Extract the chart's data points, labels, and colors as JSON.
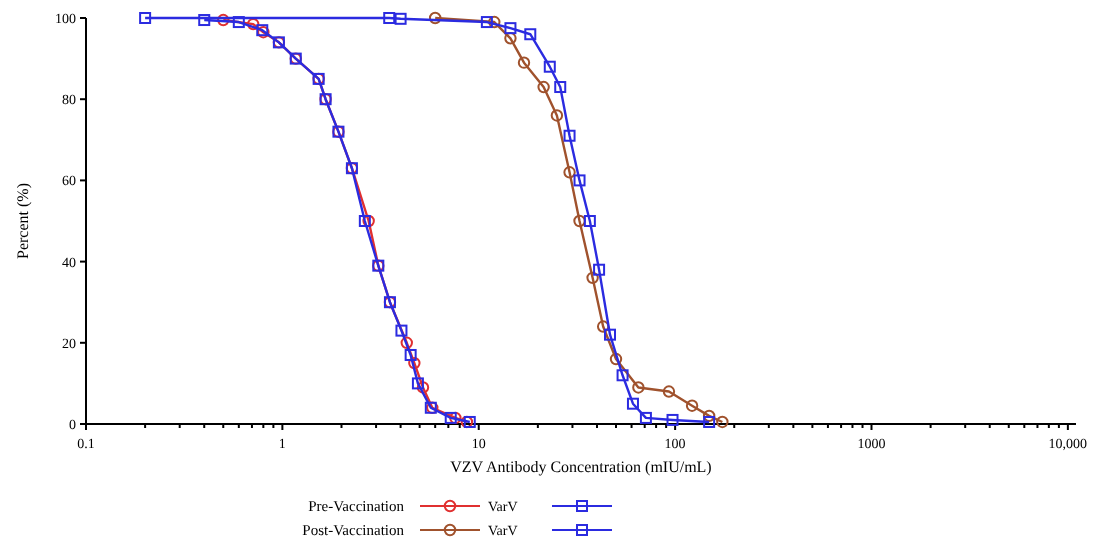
{
  "chart_data": {
    "type": "line",
    "xlabel": "VZV Antibody Concentration (mIU/mL)",
    "ylabel": "Percent (%)",
    "log": "x",
    "xlim": [
      0.1,
      11000
    ],
    "ylim": [
      0,
      100
    ],
    "xticks": [
      0.1,
      {
        "value": 0.2,
        "label": null
      },
      {
        "value": 0.3,
        "label": null
      },
      {
        "value": 0.4,
        "label": null
      },
      {
        "value": 0.5,
        "label": null
      },
      {
        "value": 0.6,
        "label": null
      },
      {
        "value": 0.7,
        "label": null
      },
      {
        "value": 0.8,
        "label": null
      },
      {
        "value": 0.9,
        "label": null
      },
      1,
      {
        "value": 2,
        "label": null
      },
      {
        "value": 3,
        "label": null
      },
      {
        "value": 4,
        "label": null
      },
      {
        "value": 5,
        "label": null
      },
      {
        "value": 6,
        "label": null
      },
      {
        "value": 7,
        "label": null
      },
      {
        "value": 8,
        "label": null
      },
      {
        "value": 9,
        "label": null
      },
      10,
      {
        "value": 20,
        "label": null
      },
      {
        "value": 30,
        "label": null
      },
      {
        "value": 40,
        "label": null
      },
      {
        "value": 50,
        "label": null
      },
      {
        "value": 60,
        "label": null
      },
      {
        "value": 70,
        "label": null
      },
      {
        "value": 80,
        "label": null
      },
      {
        "value": 90,
        "label": null
      },
      100,
      {
        "value": 200,
        "label": null
      },
      {
        "value": 300,
        "label": null
      },
      {
        "value": 400,
        "label": null
      },
      {
        "value": 500,
        "label": null
      },
      {
        "value": 600,
        "label": null
      },
      {
        "value": 700,
        "label": null
      },
      {
        "value": 800,
        "label": null
      },
      {
        "value": 900,
        "label": null
      },
      1000,
      {
        "value": 2000,
        "label": null
      },
      {
        "value": 3000,
        "label": null
      },
      {
        "value": 4000,
        "label": null
      },
      {
        "value": 5000,
        "label": null
      },
      {
        "value": 6000,
        "label": null
      },
      {
        "value": 7000,
        "label": null
      },
      {
        "value": 8000,
        "label": null
      },
      {
        "value": 9000,
        "label": null
      },
      {
        "value": 10000,
        "label": "10,000"
      }
    ],
    "yticks": [
      0,
      20,
      40,
      60,
      80,
      100
    ],
    "legend": "bottom",
    "grid": false,
    "annotations": [
      "Pre-Vaccination",
      "Post-Vaccination"
    ],
    "series": [
      {
        "name": "VarV",
        "color": "#e03030",
        "marker": "circle",
        "x": [
          0.5,
          0.71,
          0.8,
          0.96,
          1.17,
          1.53,
          1.66,
          1.93,
          2.26,
          2.75,
          3.08,
          3.53,
          4.3,
          4.7,
          5.2,
          5.8,
          7.6,
          8.7
        ],
        "values": [
          99.5,
          98.5,
          96.5,
          94,
          90,
          85,
          80,
          72,
          63,
          50,
          39,
          30,
          20,
          15,
          9,
          4,
          1.5,
          0.5
        ]
      },
      {
        "color": "#2b2be0",
        "marker": "square",
        "x": [
          0.4,
          0.6,
          0.79,
          0.96,
          1.17,
          1.53,
          1.66,
          1.93,
          2.26,
          2.63,
          3.08,
          3.53,
          4.04,
          4.5,
          4.9,
          5.7,
          7.2,
          9
        ],
        "values": [
          99.5,
          99,
          97,
          94,
          90,
          85,
          80,
          72,
          63,
          50,
          39,
          30,
          23,
          17,
          10,
          4,
          1.5,
          0.5
        ]
      },
      {
        "name": "VarV",
        "color": "#a0522d",
        "marker": "circle",
        "x": [
          6,
          12,
          14.5,
          17,
          21.4,
          25,
          29,
          32.6,
          38,
          43,
          50,
          65,
          93,
          122,
          149,
          174
        ],
        "values": [
          100,
          99,
          95,
          89,
          83,
          76,
          62,
          50,
          36,
          24,
          16,
          9,
          8,
          4.5,
          2,
          0.5
        ]
      },
      {
        "color": "#2b2be0",
        "marker": "square",
        "x": [
          0.2,
          3.5,
          4,
          11,
          14.5,
          18.3,
          23,
          26,
          29,
          32.6,
          36.8,
          41,
          46.6,
          54,
          61,
          71,
          97,
          149
        ],
        "values": [
          100,
          100,
          99.8,
          99,
          97.5,
          96,
          88,
          83,
          71,
          60,
          50,
          38,
          22,
          12,
          5,
          1.5,
          1,
          0.5
        ]
      }
    ]
  }
}
